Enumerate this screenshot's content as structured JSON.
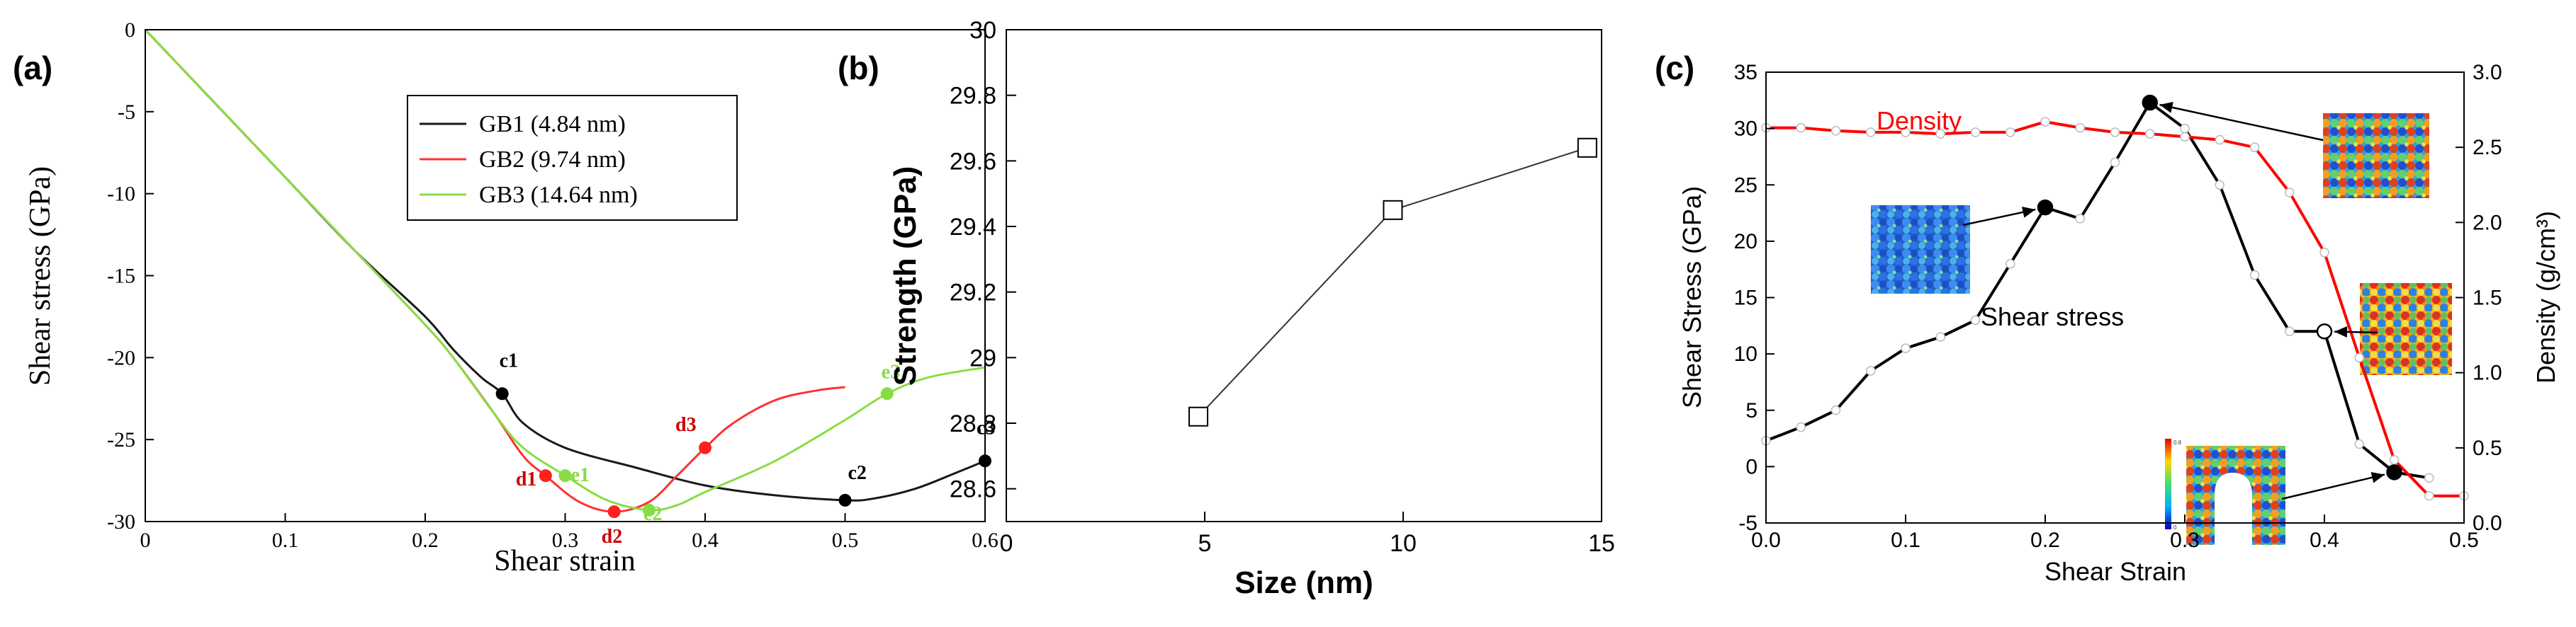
{
  "panels": [
    {
      "label": "(a)",
      "chart_data": {
        "type": "line",
        "xlabel": "Shear strain",
        "ylabel": "Shear stress (GPa)",
        "xlim": [
          0,
          0.6
        ],
        "ylim": [
          -30,
          0
        ],
        "xticks": [
          0,
          0.1,
          0.2,
          0.3,
          0.4,
          0.5,
          0.6
        ],
        "xtick_labels": [
          "0",
          "0.1",
          "0.2",
          "0.3",
          "0.4",
          "0.5",
          "0.6"
        ],
        "yticks": [
          0,
          -5,
          -10,
          -15,
          -20,
          -25,
          -30
        ],
        "ytick_labels": [
          "0",
          "-5",
          "-10",
          "-15",
          "-20",
          "-25",
          "-30"
        ],
        "legend_position": "top-right",
        "series": [
          {
            "name": "GB1 (4.84 nm)",
            "color": "#1a1a1a",
            "x": [
              0,
              0.05,
              0.1,
              0.15,
              0.2,
              0.22,
              0.24,
              0.255,
              0.27,
              0.3,
              0.35,
              0.4,
              0.45,
              0.5,
              0.52,
              0.55,
              0.58,
              0.6
            ],
            "y": [
              0,
              -4.5,
              -9,
              -13.5,
              -17.5,
              -19.5,
              -21.2,
              -22.2,
              -24,
              -25.5,
              -26.7,
              -27.8,
              -28.4,
              -28.7,
              -28.6,
              -28,
              -27,
              -26.3
            ]
          },
          {
            "name": "GB2 (9.74 nm)",
            "color": "#ff3030",
            "x": [
              0,
              0.05,
              0.1,
              0.15,
              0.2,
              0.22,
              0.25,
              0.27,
              0.286,
              0.31,
              0.335,
              0.36,
              0.38,
              0.4,
              0.42,
              0.45,
              0.48,
              0.5
            ],
            "y": [
              0,
              -4.5,
              -9,
              -13.5,
              -18,
              -20,
              -23.5,
              -26,
              -27.2,
              -28.8,
              -29.4,
              -28.8,
              -27.2,
              -25.5,
              -24,
              -22.6,
              -22,
              -21.8
            ]
          },
          {
            "name": "GB3 (14.64 nm)",
            "color": "#88dd44",
            "x": [
              0,
              0.05,
              0.1,
              0.15,
              0.2,
              0.22,
              0.25,
              0.27,
              0.3,
              0.33,
              0.36,
              0.38,
              0.4,
              0.45,
              0.5,
              0.53,
              0.56,
              0.6
            ],
            "y": [
              0,
              -4.5,
              -9,
              -13.5,
              -18,
              -20,
              -23.5,
              -25.5,
              -27.2,
              -28.7,
              -29.3,
              -29,
              -28.2,
              -26.3,
              -23.8,
              -22.2,
              -21.2,
              -20.6
            ]
          }
        ],
        "markers": [
          {
            "label": "c1",
            "series": 0,
            "x": 0.255,
            "y": -22.2,
            "color": "#000000",
            "label_color": "#000000"
          },
          {
            "label": "c2",
            "series": 0,
            "x": 0.5,
            "y": -28.7,
            "color": "#000000",
            "label_color": "#000000"
          },
          {
            "label": "c3",
            "series": 0,
            "x": 0.6,
            "y": -26.3,
            "color": "#000000",
            "label_color": "#000000"
          },
          {
            "label": "d1",
            "series": 1,
            "x": 0.286,
            "y": -27.2,
            "color": "#ff2020",
            "label_color": "#cc0000"
          },
          {
            "label": "d2",
            "series": 1,
            "x": 0.335,
            "y": -29.4,
            "color": "#ff2020",
            "label_color": "#cc0000"
          },
          {
            "label": "d3",
            "series": 1,
            "x": 0.4,
            "y": -25.5,
            "color": "#ff2020",
            "label_color": "#cc0000"
          },
          {
            "label": "e1",
            "series": 2,
            "x": 0.3,
            "y": -27.2,
            "color": "#88dd44",
            "label_color": "#88dd44"
          },
          {
            "label": "e2",
            "series": 2,
            "x": 0.36,
            "y": -29.3,
            "color": "#88dd44",
            "label_color": "#88dd44"
          },
          {
            "label": "e3",
            "series": 2,
            "x": 0.53,
            "y": -22.2,
            "color": "#88dd44",
            "label_color": "#88dd44"
          }
        ]
      }
    },
    {
      "label": "(b)",
      "chart_data": {
        "type": "line",
        "xlabel": "Size (nm)",
        "ylabel": "Strength (GPa)",
        "xlim": [
          0,
          15
        ],
        "ylim": [
          28.5,
          30
        ],
        "xticks": [
          0,
          5,
          10,
          15
        ],
        "xtick_labels": [
          "0",
          "5",
          "10",
          "15"
        ],
        "yticks": [
          28.6,
          28.8,
          29,
          29.2,
          29.4,
          29.6,
          29.8,
          30
        ],
        "ytick_labels": [
          "28.6",
          "28.8",
          "29",
          "29.2",
          "29.4",
          "29.6",
          "29.8",
          "30"
        ],
        "series": [
          {
            "color": "#333333",
            "marker": "open-square",
            "x": [
              4.84,
              9.74,
              14.64
            ],
            "y": [
              28.82,
              29.45,
              29.64
            ]
          }
        ]
      }
    },
    {
      "label": "(c)",
      "chart_data": {
        "type": "line",
        "xlabel": "Shear Strain",
        "ylabel": "Shear Stress (GPa)",
        "ylabel_right": "Density (g/cm³)",
        "xlim": [
          0,
          0.5
        ],
        "ylim": [
          -5,
          35
        ],
        "ylim_right": [
          0,
          3
        ],
        "xticks": [
          0,
          0.1,
          0.2,
          0.3,
          0.4,
          0.5
        ],
        "xtick_labels": [
          "0.0",
          "0.1",
          "0.2",
          "0.3",
          "0.4",
          "0.5"
        ],
        "yticks": [
          -5,
          0,
          5,
          10,
          15,
          20,
          25,
          30,
          35
        ],
        "ytick_labels": [
          "-5",
          "0",
          "5",
          "10",
          "15",
          "20",
          "25",
          "30",
          "35"
        ],
        "yticks_right": [
          0,
          0.5,
          1,
          1.5,
          2,
          2.5,
          3
        ],
        "ytick_labels_right": [
          "0.0",
          "0.5",
          "1.0",
          "1.5",
          "2.0",
          "2.5",
          "3.0"
        ],
        "series": [
          {
            "name": "Shear stress",
            "axis": "left",
            "color": "#000000",
            "x": [
              0,
              0.025,
              0.05,
              0.075,
              0.1,
              0.125,
              0.15,
              0.175,
              0.2,
              0.225,
              0.25,
              0.275,
              0.3,
              0.325,
              0.35,
              0.375,
              0.4,
              0.425,
              0.45,
              0.475
            ],
            "y": [
              2.3,
              3.5,
              5,
              8.5,
              10.5,
              11.5,
              13,
              18,
              23,
              22,
              27,
              32.3,
              30,
              25,
              17,
              12,
              12,
              2,
              -0.5,
              -1
            ]
          },
          {
            "name": "Density",
            "axis": "right",
            "color": "#ff0000",
            "x": [
              0,
              0.025,
              0.05,
              0.075,
              0.1,
              0.125,
              0.15,
              0.175,
              0.2,
              0.225,
              0.25,
              0.275,
              0.3,
              0.325,
              0.35,
              0.375,
              0.4,
              0.425,
              0.45,
              0.475,
              0.5
            ],
            "y": [
              2.63,
              2.63,
              2.61,
              2.6,
              2.6,
              2.59,
              2.6,
              2.6,
              2.67,
              2.63,
              2.6,
              2.59,
              2.57,
              2.55,
              2.5,
              2.2,
              1.8,
              1.1,
              0.42,
              0.18,
              0.18
            ]
          }
        ],
        "markers": [
          {
            "x": 0.2,
            "y": 23,
            "fill": "#000000"
          },
          {
            "x": 0.275,
            "y": 32.3,
            "fill": "#000000"
          },
          {
            "x": 0.4,
            "y": 12,
            "fill": "#ffffff"
          },
          {
            "x": 0.45,
            "y": -0.5,
            "fill": "#000000"
          }
        ],
        "annotations": [
          {
            "text": "Density",
            "color": "#ff0000"
          },
          {
            "text": "Shear stress",
            "color": "#000000"
          }
        ]
      }
    }
  ],
  "colorbar_ticks": [
    "0.8",
    "0"
  ]
}
